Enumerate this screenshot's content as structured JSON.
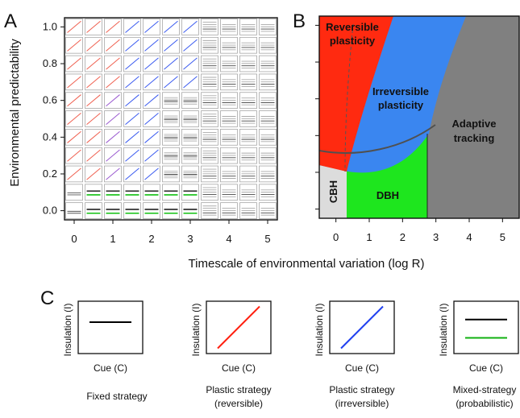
{
  "panels": {
    "a": "A",
    "b": "B",
    "c": "C"
  },
  "shared_xlabel": "Timescale of environmental variation (log R)",
  "chart_data": [
    {
      "id": "A",
      "type": "heatmap",
      "ylabel": "Environmental predictability",
      "x_ticks": [
        "0",
        "1",
        "2",
        "3",
        "4",
        "5"
      ],
      "y_ticks": [
        "0.0",
        "0.2",
        "0.4",
        "0.6",
        "0.8",
        "1.0"
      ],
      "xlim": [
        -0.25,
        5.25
      ],
      "ylim": [
        -0.05,
        1.05
      ],
      "cell_x": [
        0,
        0.5,
        1,
        1.5,
        2,
        2.5,
        3,
        3.5,
        4,
        4.5,
        5
      ],
      "cell_y": [
        0.0,
        0.1,
        0.2,
        0.3,
        0.4,
        0.5,
        0.6,
        0.7,
        0.8,
        0.9,
        1.0
      ],
      "note_grid": "each cell shows a miniature plot of insulation vs cue"
    },
    {
      "id": "B",
      "type": "area",
      "x_ticks": [
        "0",
        "1",
        "2",
        "3",
        "4",
        "5"
      ],
      "xlim": [
        -0.5,
        5.5
      ],
      "ylim": [
        -0.05,
        1.05
      ],
      "regions": [
        {
          "label": "Reversible plasticity",
          "color": "#ff2a10"
        },
        {
          "label": "Irreversible plasticity",
          "color": "#3a86f0"
        },
        {
          "label": "Adaptive tracking",
          "color": "#808080"
        },
        {
          "label": "DBH",
          "color": "#1ee61e"
        },
        {
          "label": "CBH",
          "color": "#dcdcdc"
        }
      ]
    },
    {
      "id": "C",
      "type": "line",
      "ylabel": "Insulation (I)",
      "xlabel": "Cue (C)",
      "examples": [
        {
          "caption": [
            "Fixed strategy"
          ],
          "lines": [
            {
              "color": "#000000",
              "y0": 0.6,
              "y1": 0.6
            }
          ]
        },
        {
          "caption": [
            "Plastic strategy",
            "(reversible)"
          ],
          "lines": [
            {
              "color": "#ff2010",
              "y0": 0.1,
              "y1": 0.9
            }
          ]
        },
        {
          "caption": [
            "Plastic strategy",
            "(irreversible)"
          ],
          "lines": [
            {
              "color": "#1f3ff0",
              "y0": 0.1,
              "y1": 0.9
            }
          ]
        },
        {
          "caption": [
            "Mixed-strategy",
            "(probabilistic)"
          ],
          "lines": [
            {
              "color": "#000000",
              "y0": 0.65,
              "y1": 0.65
            },
            {
              "color": "#10b010",
              "y0": 0.3,
              "y1": 0.3
            }
          ]
        }
      ]
    }
  ]
}
